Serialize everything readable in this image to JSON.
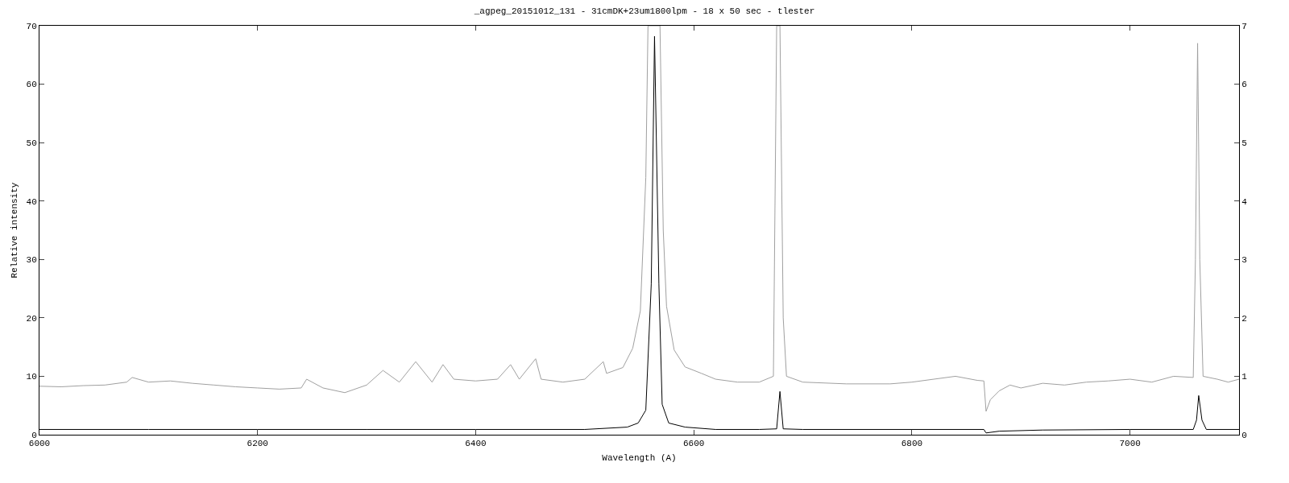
{
  "chart_data": {
    "type": "line",
    "title": "_agpeg_20151012_131 - 31cmDK+23um1800lpm - 18 x 50 sec - tlester",
    "xlabel": "Wavelength (A)",
    "ylabel": "Relative intensity",
    "xlim": [
      6000,
      7100
    ],
    "xticks": [
      6000,
      6200,
      6400,
      6600,
      6800,
      7000
    ],
    "ylim": [
      0,
      70
    ],
    "yticks": [
      0,
      10,
      20,
      30,
      40,
      50,
      60,
      70
    ],
    "y2lim": [
      0,
      7
    ],
    "y2ticks": [
      0,
      1,
      2,
      3,
      4,
      5,
      6,
      7
    ],
    "grid": false,
    "marker": "none",
    "line_style": "solid",
    "series": [
      {
        "color": "#a0a0a0",
        "axis": "y2",
        "x": [
          6000,
          6020,
          6040,
          6060,
          6080,
          6085,
          6100,
          6120,
          6140,
          6160,
          6180,
          6200,
          6220,
          6240,
          6245,
          6260,
          6280,
          6300,
          6315,
          6330,
          6345,
          6360,
          6370,
          6380,
          6400,
          6420,
          6432,
          6440,
          6455,
          6460,
          6480,
          6500,
          6517,
          6520,
          6535,
          6544,
          6551,
          6556,
          6558,
          6569,
          6572,
          6575,
          6582,
          6592,
          6607,
          6620,
          6640,
          6660,
          6673,
          6676,
          6679,
          6682,
          6685,
          6700,
          6740,
          6780,
          6800,
          6820,
          6840,
          6860,
          6866,
          6868,
          6872,
          6880,
          6890,
          6900,
          6920,
          6940,
          6960,
          6980,
          7000,
          7020,
          7040,
          7058,
          7060,
          7062,
          7064,
          7067,
          7080,
          7090,
          7100
        ],
        "values": [
          0.83,
          0.82,
          0.84,
          0.85,
          0.9,
          0.98,
          0.9,
          0.92,
          0.88,
          0.85,
          0.82,
          0.8,
          0.78,
          0.8,
          0.95,
          0.8,
          0.72,
          0.85,
          1.1,
          0.9,
          1.25,
          0.9,
          1.2,
          0.95,
          0.92,
          0.95,
          1.2,
          0.95,
          1.3,
          0.95,
          0.9,
          0.95,
          1.25,
          1.05,
          1.15,
          1.48,
          2.12,
          4.4,
          7,
          7,
          3.5,
          2.2,
          1.45,
          1.16,
          1.05,
          0.95,
          0.9,
          0.9,
          1.0,
          7,
          7,
          2,
          1.0,
          0.9,
          0.87,
          0.87,
          0.9,
          0.95,
          1.0,
          0.93,
          0.92,
          0.4,
          0.6,
          0.75,
          0.85,
          0.8,
          0.88,
          0.85,
          0.9,
          0.92,
          0.95,
          0.9,
          1.0,
          0.98,
          3,
          6.7,
          3,
          1.0,
          0.95,
          0.9,
          0.95
        ]
      },
      {
        "color": "#000000",
        "x": [
          6000,
          6100,
          6200,
          6300,
          6400,
          6500,
          6539,
          6549,
          6556,
          6561,
          6564,
          6568,
          6571,
          6577,
          6592,
          6620,
          6660,
          6676,
          6679,
          6682,
          6700,
          6800,
          6866,
          6868,
          6880,
          6920,
          7000,
          7058,
          7061,
          7063,
          7066,
          7070,
          7100
        ],
        "values": [
          0.9,
          0.9,
          0.9,
          0.9,
          0.9,
          0.9,
          1.3,
          2.0,
          4.2,
          25.8,
          68.2,
          25.8,
          5.2,
          2.0,
          1.3,
          0.9,
          0.9,
          1.0,
          7.4,
          1.0,
          0.9,
          0.9,
          0.9,
          0.3,
          0.6,
          0.8,
          0.9,
          0.9,
          2.5,
          6.7,
          2.5,
          0.9,
          0.9
        ]
      }
    ]
  }
}
